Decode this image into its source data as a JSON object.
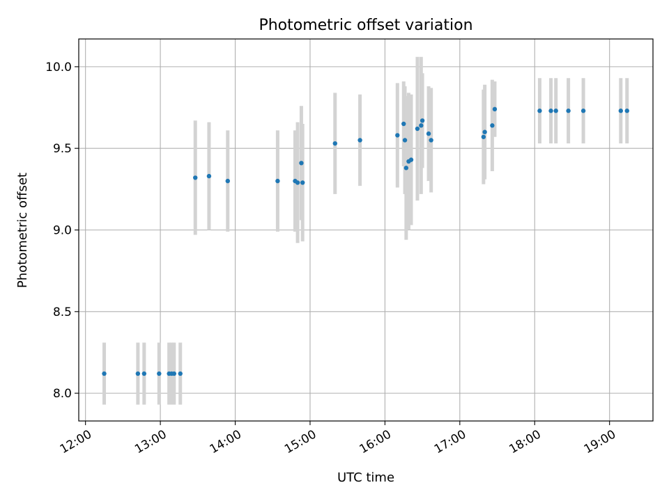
{
  "chart_data": {
    "type": "scatter",
    "title": "Photometric offset variation",
    "xlabel": "UTC time",
    "ylabel": "Photometric offset",
    "x_tick_labels": [
      "12:00",
      "13:00",
      "14:00",
      "15:00",
      "16:00",
      "17:00",
      "18:00",
      "19:00"
    ],
    "x_tick_hours": [
      12,
      13,
      14,
      15,
      16,
      17,
      18,
      19
    ],
    "x_range_hours": [
      11.91,
      19.58
    ],
    "y_ticks": [
      8.0,
      8.5,
      9.0,
      9.5,
      10.0
    ],
    "y_tick_labels": [
      "8.0",
      "8.5",
      "9.0",
      "9.5",
      "10.0"
    ],
    "ylim": [
      7.83,
      10.17
    ],
    "grid": true,
    "colors": {
      "marker": "#1f77b4",
      "errorbar": "#d3d3d3",
      "grid": "#b0b0b0",
      "axes": "#000000"
    },
    "points": [
      {
        "t": "12:15",
        "y": 8.12,
        "err": 0.19
      },
      {
        "t": "12:42",
        "y": 8.12,
        "err": 0.19
      },
      {
        "t": "12:47",
        "y": 8.12,
        "err": 0.19
      },
      {
        "t": "12:59",
        "y": 8.12,
        "err": 0.19
      },
      {
        "t": "13:07",
        "y": 8.12,
        "err": 0.19
      },
      {
        "t": "13:09",
        "y": 8.12,
        "err": 0.19
      },
      {
        "t": "13:11",
        "y": 8.12,
        "err": 0.19
      },
      {
        "t": "13:16",
        "y": 8.12,
        "err": 0.19
      },
      {
        "t": "13:28",
        "y": 9.32,
        "err": 0.35
      },
      {
        "t": "13:39",
        "y": 9.33,
        "err": 0.33
      },
      {
        "t": "13:54",
        "y": 9.3,
        "err": 0.31
      },
      {
        "t": "14:34",
        "y": 9.3,
        "err": 0.31
      },
      {
        "t": "14:48",
        "y": 9.3,
        "err": 0.31
      },
      {
        "t": "14:50",
        "y": 9.29,
        "err": 0.37
      },
      {
        "t": "14:53",
        "y": 9.41,
        "err": 0.35
      },
      {
        "t": "14:54",
        "y": 9.29,
        "err": 0.36
      },
      {
        "t": "15:20",
        "y": 9.53,
        "err": 0.31
      },
      {
        "t": "15:40",
        "y": 9.55,
        "err": 0.28
      },
      {
        "t": "16:10",
        "y": 9.58,
        "err": 0.32
      },
      {
        "t": "16:15",
        "y": 9.65,
        "err": 0.26
      },
      {
        "t": "16:16",
        "y": 9.55,
        "err": 0.33
      },
      {
        "t": "16:17",
        "y": 9.38,
        "err": 0.44
      },
      {
        "t": "16:19",
        "y": 9.42,
        "err": 0.42
      },
      {
        "t": "16:21",
        "y": 9.43,
        "err": 0.4
      },
      {
        "t": "16:26",
        "y": 9.62,
        "err": 0.44
      },
      {
        "t": "16:29",
        "y": 9.64,
        "err": 0.42
      },
      {
        "t": "16:30",
        "y": 9.67,
        "err": 0.29
      },
      {
        "t": "16:35",
        "y": 9.59,
        "err": 0.29
      },
      {
        "t": "16:37",
        "y": 9.55,
        "err": 0.32
      },
      {
        "t": "17:19",
        "y": 9.57,
        "err": 0.29
      },
      {
        "t": "17:20",
        "y": 9.6,
        "err": 0.29
      },
      {
        "t": "17:26",
        "y": 9.64,
        "err": 0.28
      },
      {
        "t": "17:28",
        "y": 9.74,
        "err": 0.17
      },
      {
        "t": "18:04",
        "y": 9.73,
        "err": 0.2
      },
      {
        "t": "18:13",
        "y": 9.73,
        "err": 0.2
      },
      {
        "t": "18:17",
        "y": 9.73,
        "err": 0.2
      },
      {
        "t": "18:27",
        "y": 9.73,
        "err": 0.2
      },
      {
        "t": "18:39",
        "y": 9.73,
        "err": 0.2
      },
      {
        "t": "19:09",
        "y": 9.73,
        "err": 0.2
      },
      {
        "t": "19:14",
        "y": 9.73,
        "err": 0.2
      }
    ]
  }
}
